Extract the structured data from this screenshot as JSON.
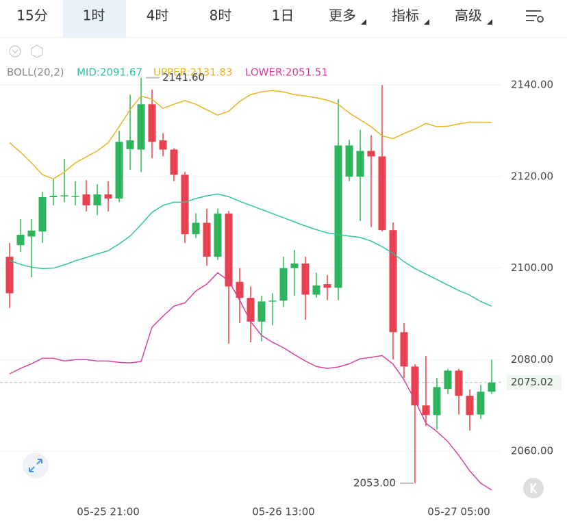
{
  "tabs": [
    "15分",
    "1时",
    "4时",
    "8时",
    "1日",
    "更多",
    "指标",
    "高级"
  ],
  "active_tab": 1,
  "chart_data": {
    "type": "candlestick",
    "indicator": "BOLL(20,2)",
    "categories": [
      null,
      null,
      null,
      null,
      null,
      null,
      null,
      null,
      null,
      "05-25 21:00",
      null,
      null,
      null,
      null,
      null,
      null,
      null,
      null,
      null,
      null,
      null,
      null,
      null,
      null,
      null,
      "05-26 13:00",
      null,
      null,
      null,
      null,
      null,
      null,
      null,
      null,
      null,
      null,
      null,
      null,
      null,
      null,
      null,
      "05-27 05:00",
      null,
      null,
      null
    ],
    "open": [
      2102.5,
      2105.0,
      2106.9,
      2108.0,
      2115.5,
      2115.7,
      2115.6,
      2116.1,
      2113.7,
      2116.1,
      2115.2,
      2126.0,
      2125.9,
      2135.8,
      2127.9,
      2125.9,
      2120.4,
      2107.4,
      2109.9,
      2102.5,
      2111.9,
      2097.0,
      2093.5,
      2088.3,
      2092.7,
      2092.9,
      2100.0,
      2101.0,
      2094.2,
      2096.5,
      2095.7,
      2120.0,
      2120.0,
      2125.6,
      2124.4,
      2108.3,
      2086.0,
      2078.5,
      2070.0,
      2067.9,
      2073.6,
      2077.6,
      2072.1,
      2068.0,
      2073.0
    ],
    "high": [
      2105.5,
      2110.7,
      2110.7,
      2116.7,
      2119.4,
      2123.9,
      2119.0,
      2119.2,
      2118.3,
      2119.0,
      2130.0,
      2137.9,
      2141.6,
      2139.0,
      2129.5,
      2126.2,
      2121.0,
      2112.0,
      2113.0,
      2113.0,
      2112.5,
      2100.0,
      2096.0,
      2094.0,
      2094.5,
      2102.5,
      2104.0,
      2102.5,
      2099.0,
      2098.5,
      2136.9,
      2128.0,
      2130.2,
      2129.0,
      2140.0,
      2110.0,
      2088.0,
      2079.0,
      2080.8,
      2076.0,
      2078.0,
      2078.0,
      2073.5,
      2074.5,
      2080.0
    ],
    "low": [
      2091.3,
      2103.5,
      2098.0,
      2105.5,
      2113.7,
      2114.4,
      2113.7,
      2112.4,
      2111.6,
      2112.4,
      2114.4,
      2121.5,
      2121.0,
      2124.0,
      2124.4,
      2119.0,
      2105.5,
      2106.6,
      2100.5,
      2101.8,
      2083.5,
      2088.0,
      2083.8,
      2084.0,
      2087.5,
      2091.5,
      2094.0,
      2088.7,
      2093.5,
      2093.0,
      2093.0,
      2119.0,
      2110.3,
      2109.0,
      2108.0,
      2080.0,
      2076.0,
      2053.0,
      2065.5,
      2064.7,
      2072.5,
      2068.0,
      2064.5,
      2067.0,
      2072.5
    ],
    "close": [
      2094.5,
      2107.3,
      2108.2,
      2115.5,
      2115.8,
      2115.9,
      2115.8,
      2113.7,
      2116.1,
      2115.2,
      2127.6,
      2127.9,
      2135.8,
      2127.6,
      2125.9,
      2120.4,
      2107.4,
      2109.9,
      2102.5,
      2111.9,
      2096.0,
      2093.5,
      2088.3,
      2092.7,
      2092.9,
      2100.0,
      2101.0,
      2094.2,
      2096.2,
      2095.7,
      2126.8,
      2126.8,
      2125.6,
      2124.4,
      2108.3,
      2086.0,
      2078.5,
      2070.0,
      2067.9,
      2074.0,
      2077.6,
      2072.1,
      2067.9,
      2073.0,
      2075.02
    ],
    "up_color": "#2db55d",
    "down_color": "#e8414f",
    "series": [
      {
        "name": "MID:2091.67",
        "color": "#2ec4a0",
        "values": [
          2101.7,
          2100.8,
          2100.2,
          2099.9,
          2100.0,
          2100.7,
          2101.6,
          2102.3,
          2103.1,
          2103.8,
          2105.3,
          2107.0,
          2109.5,
          2112.2,
          2113.7,
          2114.4,
          2114.4,
          2115.2,
          2115.8,
          2116.2,
          2115.6,
          2114.6,
          2113.7,
          2112.8,
          2111.9,
          2111.0,
          2110.1,
          2109.2,
          2108.4,
          2107.7,
          2107.3,
          2107.0,
          2106.7,
          2105.9,
          2104.7,
          2103.2,
          2101.4,
          2099.9,
          2098.7,
          2097.5,
          2096.3,
          2095.1,
          2094.1,
          2092.7,
          2091.67
        ]
      },
      {
        "name": "UPPER:2131.83",
        "color": "#e9b425",
        "values": [
          2127.4,
          2125.3,
          2123.0,
          2120.4,
          2119.5,
          2121.0,
          2123.0,
          2124.3,
          2125.6,
          2127.4,
          2130.9,
          2134.6,
          2137.6,
          2136.9,
          2134.9,
          2135.8,
          2136.6,
          2135.8,
          2134.6,
          2133.4,
          2134.3,
          2136.4,
          2137.9,
          2138.5,
          2138.8,
          2138.5,
          2137.9,
          2137.6,
          2137.2,
          2136.7,
          2135.8,
          2133.9,
          2132.4,
          2130.9,
          2128.9,
          2128.3,
          2129.4,
          2130.4,
          2131.6,
          2130.9,
          2131.0,
          2131.5,
          2131.9,
          2131.9,
          2131.83
        ]
      },
      {
        "name": "LOWER:2051.51",
        "color": "#d6409f",
        "values": [
          2076.9,
          2078.1,
          2079.1,
          2080.3,
          2080.3,
          2079.7,
          2080.0,
          2080.0,
          2079.7,
          2079.7,
          2079.4,
          2079.3,
          2079.6,
          2087.1,
          2089.5,
          2091.7,
          2092.4,
          2095.0,
          2096.5,
          2099.0,
          2097.2,
          2093.0,
          2088.3,
          2085.3,
          2083.8,
          2082.6,
          2081.1,
          2079.7,
          2078.5,
          2078.1,
          2078.4,
          2079.1,
          2080.2,
          2080.5,
          2080.9,
          2079.0,
          2075.6,
          2071.1,
          2066.1,
          2064.3,
          2062.1,
          2059.1,
          2055.7,
          2053.0,
          2051.51
        ]
      }
    ],
    "ylim": [
      2049.4,
      2149.9
    ],
    "yticks": [
      {
        "value": 2060,
        "label": "2060.00"
      },
      {
        "value": 2080,
        "label": "2080.00"
      },
      {
        "value": 2100,
        "label": "2100.00"
      },
      {
        "value": 2120,
        "label": "2120.00"
      },
      {
        "value": 2140,
        "label": "2140.00"
      }
    ],
    "grid": true,
    "high_label": {
      "value": 2141.6,
      "label": "2141.60"
    },
    "low_label": {
      "value": 2053.0,
      "label": "2053.00"
    },
    "last_price": {
      "value": 2075.02,
      "label": "2075.02"
    }
  }
}
